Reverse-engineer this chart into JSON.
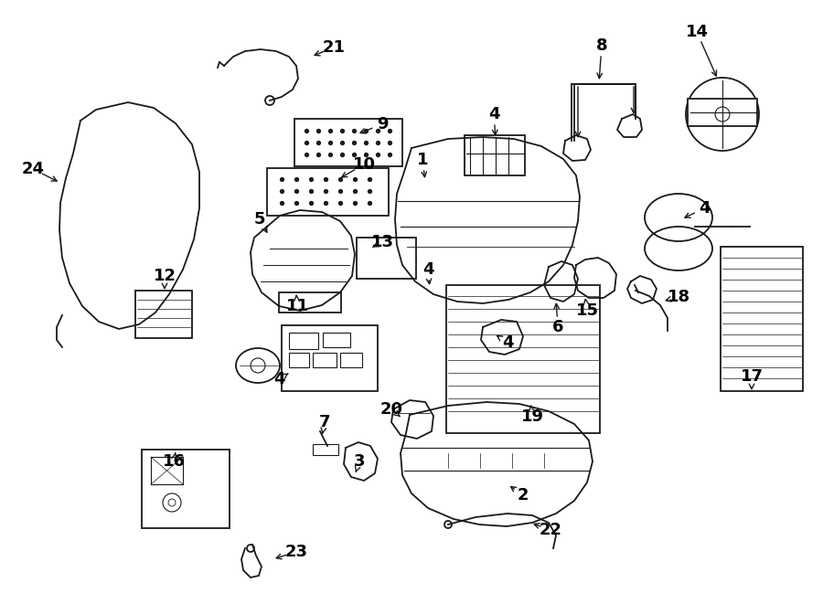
{
  "bg_color": "#ffffff",
  "line_color": "#1a1a1a",
  "label_color": "#000000",
  "fig_width": 9.0,
  "fig_height": 6.61,
  "dpi": 100
}
